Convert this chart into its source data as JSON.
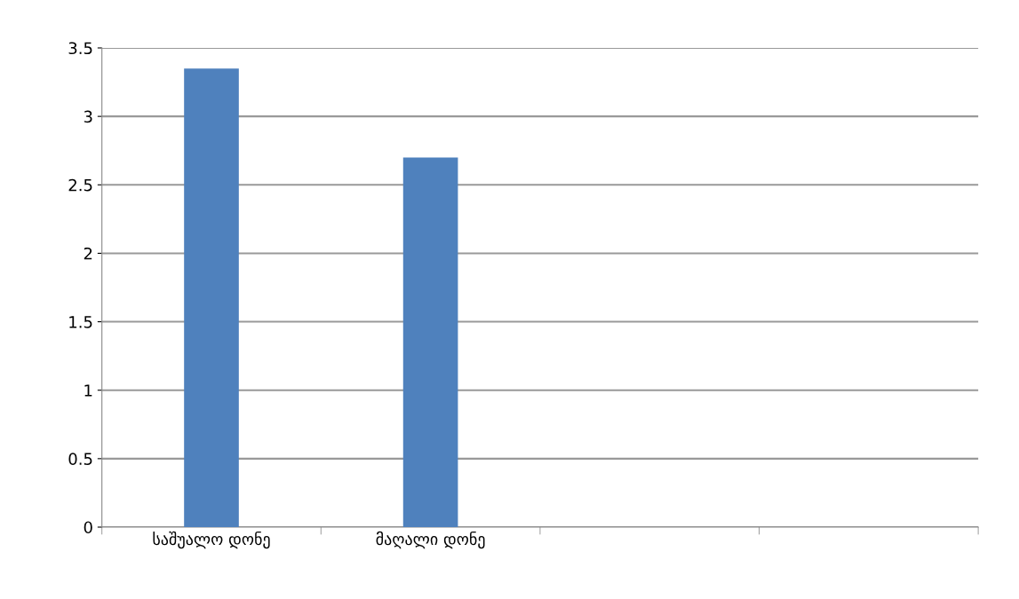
{
  "chart_data": {
    "type": "bar",
    "categories": [
      "საშუალო დონე",
      "მაღალი დონე",
      null,
      null
    ],
    "values": [
      3.35,
      2.7,
      null,
      null
    ],
    "color": "#4f81bd",
    "ylim": [
      0,
      3.5
    ],
    "yticks": [
      0,
      0.5,
      1,
      1.5,
      2,
      2.5,
      3,
      3.5
    ],
    "grid": "y",
    "legend": false
  }
}
